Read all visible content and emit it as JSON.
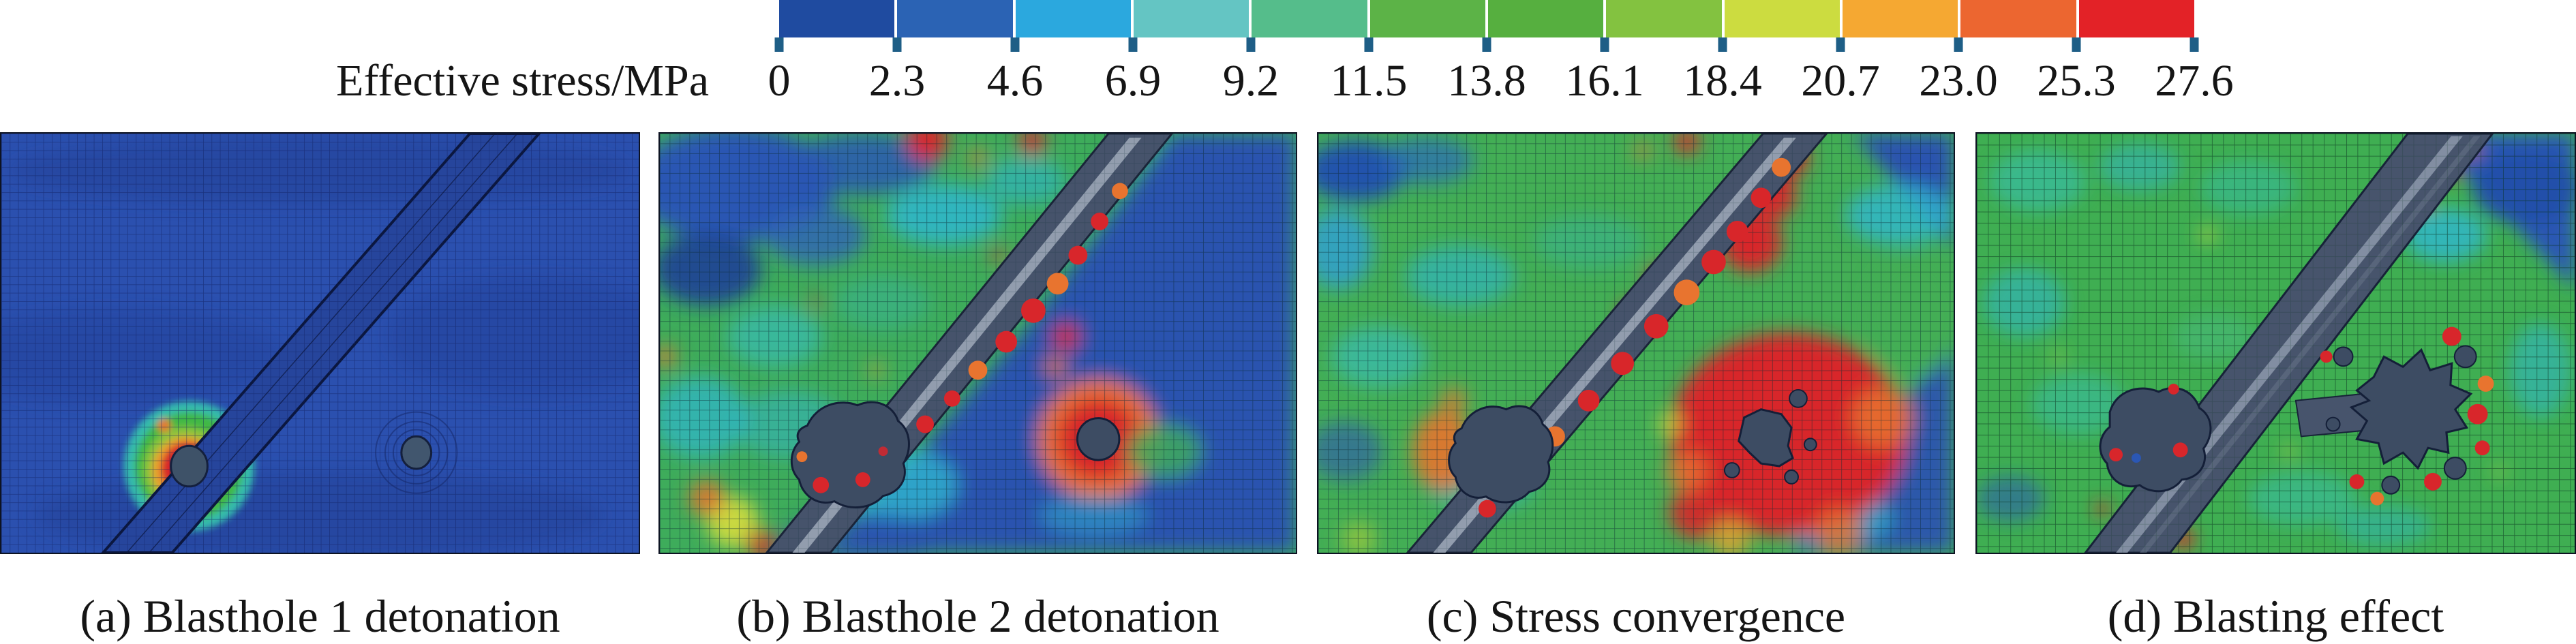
{
  "figure": {
    "colorbar": {
      "label": "Effective stress/MPa",
      "tick_values": [
        "0",
        "2.3",
        "4.6",
        "6.9",
        "9.2",
        "11.5",
        "13.8",
        "16.1",
        "18.4",
        "20.7",
        "23.0",
        "25.3",
        "27.6"
      ],
      "segment_colors": [
        "#1F4BA0",
        "#2B63B4",
        "#2BA8DE",
        "#64C5C3",
        "#55BD8B",
        "#5CB347",
        "#56AF3F",
        "#83C240",
        "#CCDC40",
        "#F5A832",
        "#EC6630",
        "#E32227"
      ],
      "tick_color": "#1E5E86"
    },
    "panels": [
      {
        "id": "a",
        "caption": "(a) Blasthole 1 detonation"
      },
      {
        "id": "b",
        "caption": "(b) Blasthole 2 detonation"
      },
      {
        "id": "c",
        "caption": "(c) Stress convergence"
      },
      {
        "id": "d",
        "caption": "(d) Blasting effect"
      }
    ]
  }
}
